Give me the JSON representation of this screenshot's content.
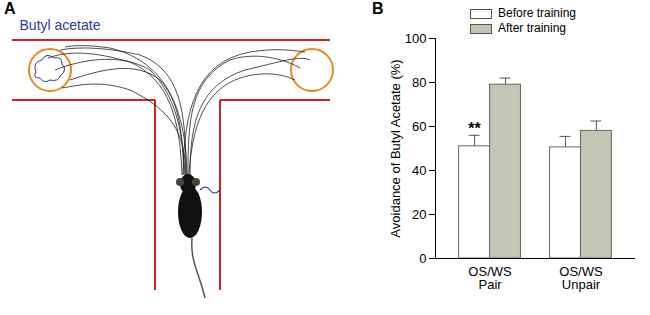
{
  "panels": {
    "a": {
      "label": "A",
      "odor_label": "Butyl acetate"
    },
    "b": {
      "label": "B"
    }
  },
  "chart_data": {
    "type": "bar",
    "y_label": "Avoidance of Butyl Acetate (%)",
    "categories": [
      "OS/WS\nPair",
      "OS/WS\nUnpair"
    ],
    "series": [
      {
        "name": "Before training",
        "color": "#ffffff",
        "values": [
          51,
          50.5
        ],
        "errors": [
          5,
          5
        ]
      },
      {
        "name": "After training",
        "color": "#c2c6b4",
        "values": [
          79,
          58
        ],
        "errors": [
          3,
          4.5
        ]
      }
    ],
    "annotations": [
      {
        "text": "**",
        "category": "OS/WS\nPair",
        "series": "Before training"
      }
    ],
    "ylim": [
      0,
      100
    ],
    "yticks": [
      0,
      20,
      40,
      60,
      80,
      100
    ],
    "legend": "top",
    "grid": false
  }
}
